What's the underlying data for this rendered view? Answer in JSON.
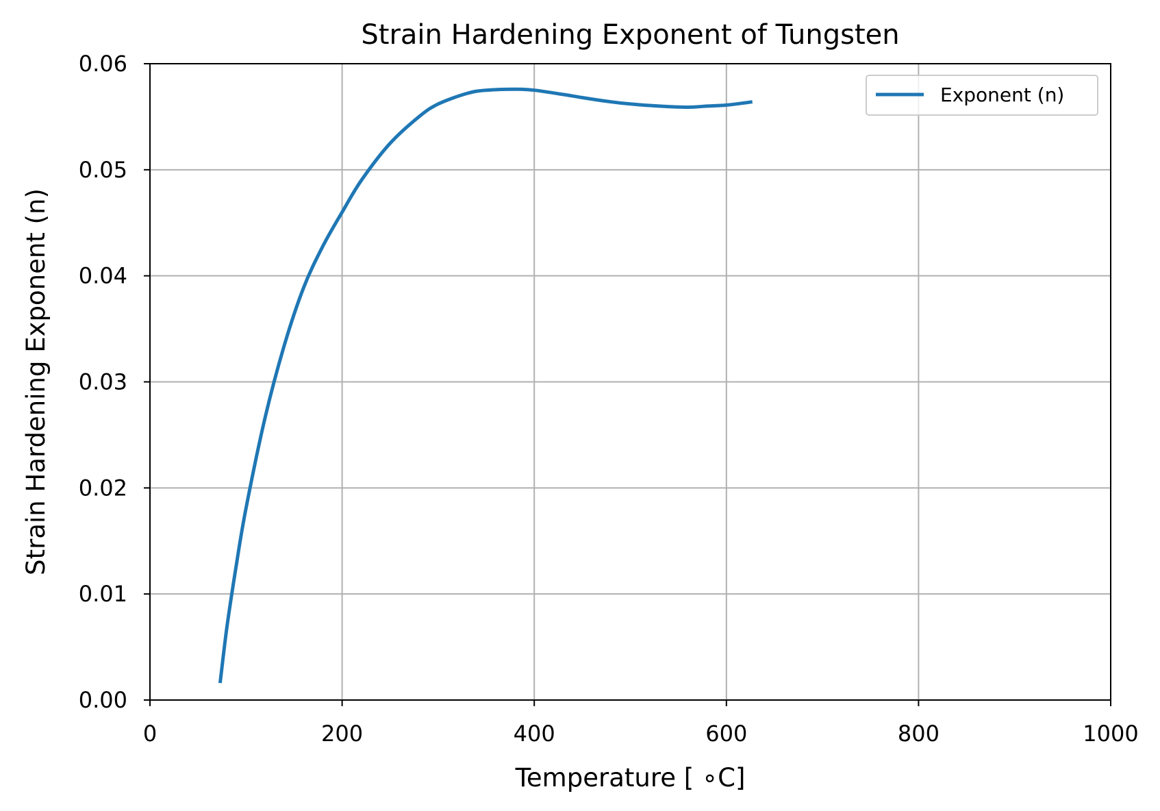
{
  "chart_data": {
    "type": "line",
    "title": "Strain Hardening Exponent of Tungsten",
    "xlabel": "Temperature [$^\\circ$C]",
    "xlabel_display": "Temperature [ ∘C]",
    "ylabel": "Strain Hardening Exponent (n)",
    "xlim": [
      0,
      1000
    ],
    "ylim": [
      0,
      0.06
    ],
    "xticks": [
      0,
      200,
      400,
      600,
      800,
      1000
    ],
    "xtick_labels": [
      "0",
      "200",
      "400",
      "600",
      "800",
      "1000"
    ],
    "yticks": [
      0,
      0.01,
      0.02,
      0.03,
      0.04,
      0.05,
      0.06
    ],
    "ytick_labels": [
      "0.00",
      "0.01",
      "0.02",
      "0.03",
      "0.04",
      "0.05",
      "0.06"
    ],
    "grid": true,
    "legend_position": "top-right",
    "series": [
      {
        "name": "Exponent (n)",
        "color": "#1f77b4",
        "x": [
          73,
          80,
          90,
          100,
          120,
          140,
          160,
          180,
          200,
          220,
          250,
          280,
          300,
          330,
          350,
          380,
          400,
          430,
          450,
          480,
          500,
          530,
          560,
          580,
          600,
          627
        ],
        "y": [
          0.0016,
          0.0068,
          0.0128,
          0.0181,
          0.0267,
          0.0335,
          0.0389,
          0.0428,
          0.046,
          0.049,
          0.0525,
          0.055,
          0.0562,
          0.0572,
          0.0575,
          0.0576,
          0.0575,
          0.0571,
          0.0568,
          0.0564,
          0.0562,
          0.056,
          0.0559,
          0.056,
          0.0561,
          0.0564
        ]
      }
    ]
  }
}
